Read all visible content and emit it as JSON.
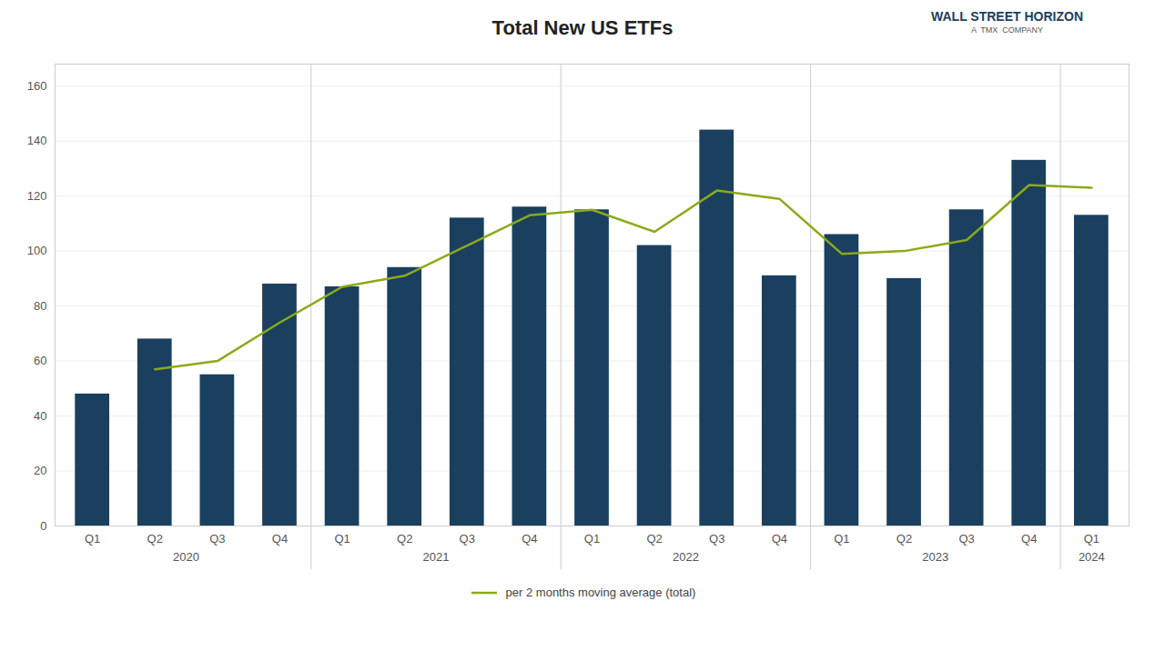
{
  "chart_data": {
    "type": "bar",
    "title": "Total New US ETFs",
    "categories": [
      "Q1",
      "Q2",
      "Q3",
      "Q4",
      "Q1",
      "Q2",
      "Q3",
      "Q4",
      "Q1",
      "Q2",
      "Q3",
      "Q4",
      "Q1",
      "Q2",
      "Q3",
      "Q4",
      "Q1"
    ],
    "values": [
      48,
      68,
      55,
      88,
      87,
      94,
      112,
      116,
      115,
      102,
      144,
      91,
      106,
      90,
      115,
      133,
      113
    ],
    "color": "#1b3f5e",
    "series": [
      {
        "name": "per 2 months moving average (total)",
        "type": "line",
        "color": "#8aaa1a",
        "values": [
          null,
          57,
          60,
          74,
          87,
          91,
          102,
          113,
          115,
          107,
          122,
          119,
          99,
          100,
          104,
          124,
          123
        ]
      }
    ],
    "ylim": [
      0,
      168
    ],
    "yticks": [
      0,
      20,
      40,
      60,
      80,
      100,
      120,
      140,
      160
    ],
    "grid": true,
    "legend": "bottom",
    "group_labels": [
      {
        "label": "2020",
        "x": 1.5
      },
      {
        "label": "2021",
        "x": 5.5
      },
      {
        "label": "2022",
        "x": 9.5
      },
      {
        "label": "2023",
        "x": 13.5
      },
      {
        "label": "2024",
        "x": 16.0
      }
    ],
    "separators": [
      3.5,
      7.5,
      11.5,
      15.5
    ],
    "annotations": [
      {
        "text": "WALL STREET HORIZON"
      },
      {
        "text": "A  TMX  COMPANY"
      }
    ]
  }
}
